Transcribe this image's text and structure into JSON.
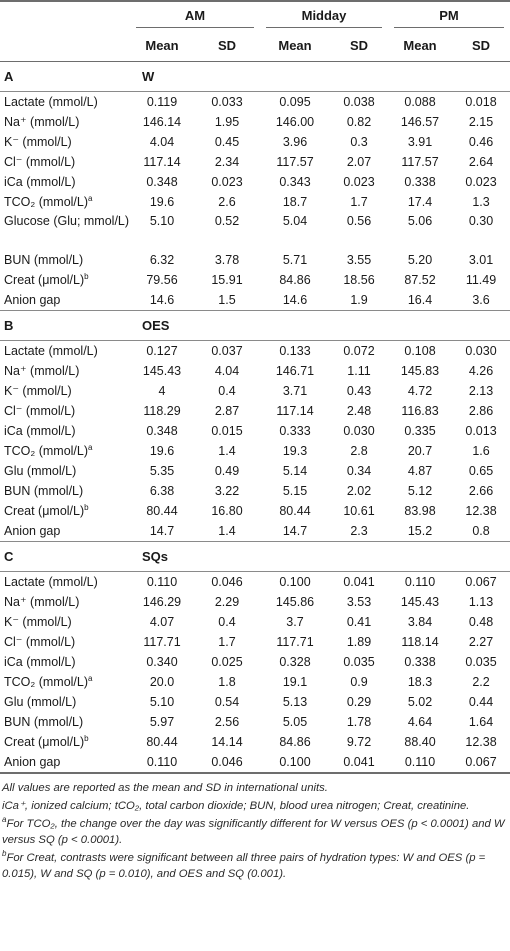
{
  "header": {
    "groups": [
      "AM",
      "Midday",
      "PM"
    ],
    "mean_label": "Mean",
    "sd_label": "SD"
  },
  "sections": [
    {
      "letter": "A",
      "name": "W",
      "rows": [
        {
          "label": "Lactate (mmol/L)",
          "sup": "",
          "am_mean": "0.119",
          "am_sd": "0.033",
          "mid_mean": "0.095",
          "mid_sd": "0.038",
          "pm_mean": "0.088",
          "pm_sd": "0.018"
        },
        {
          "label": "Na⁺ (mmol/L)",
          "sup": "",
          "am_mean": "146.14",
          "am_sd": "1.95",
          "mid_mean": "146.00",
          "mid_sd": "0.82",
          "pm_mean": "146.57",
          "pm_sd": "2.15"
        },
        {
          "label": "K⁻ (mmol/L)",
          "sup": "",
          "am_mean": "4.04",
          "am_sd": "0.45",
          "mid_mean": "3.96",
          "mid_sd": "0.3",
          "pm_mean": "3.91",
          "pm_sd": "0.46"
        },
        {
          "label": "Cl⁻ (mmol/L)",
          "sup": "",
          "am_mean": "117.14",
          "am_sd": "2.34",
          "mid_mean": "117.57",
          "mid_sd": "2.07",
          "pm_mean": "117.57",
          "pm_sd": "2.64"
        },
        {
          "label": "iCa (mmol/L)",
          "sup": "",
          "am_mean": "0.348",
          "am_sd": "0.023",
          "mid_mean": "0.343",
          "mid_sd": "0.023",
          "pm_mean": "0.338",
          "pm_sd": "0.023"
        },
        {
          "label": "TCO₂ (mmol/L)",
          "sup": "a",
          "am_mean": "19.6",
          "am_sd": "2.6",
          "mid_mean": "18.7",
          "mid_sd": "1.7",
          "pm_mean": "17.4",
          "pm_sd": "1.3"
        },
        {
          "label": "Glucose (Glu; mmol/L)",
          "sup": "",
          "tall": true,
          "am_mean": "5.10",
          "am_sd": "0.52",
          "mid_mean": "5.04",
          "mid_sd": "0.56",
          "pm_mean": "5.06",
          "pm_sd": "0.30"
        },
        {
          "label": "BUN (mmol/L)",
          "sup": "",
          "am_mean": "6.32",
          "am_sd": "3.78",
          "mid_mean": "5.71",
          "mid_sd": "3.55",
          "pm_mean": "5.20",
          "pm_sd": "3.01"
        },
        {
          "label": "Creat (μmol/L)",
          "sup": "b",
          "am_mean": "79.56",
          "am_sd": "15.91",
          "mid_mean": "84.86",
          "mid_sd": "18.56",
          "pm_mean": "87.52",
          "pm_sd": "11.49"
        },
        {
          "label": "Anion gap",
          "sup": "",
          "am_mean": "14.6",
          "am_sd": "1.5",
          "mid_mean": "14.6",
          "mid_sd": "1.9",
          "pm_mean": "16.4",
          "pm_sd": "3.6"
        }
      ]
    },
    {
      "letter": "B",
      "name": "OES",
      "rows": [
        {
          "label": "Lactate (mmol/L)",
          "sup": "",
          "am_mean": "0.127",
          "am_sd": "0.037",
          "mid_mean": "0.133",
          "mid_sd": "0.072",
          "pm_mean": "0.108",
          "pm_sd": "0.030"
        },
        {
          "label": "Na⁺ (mmol/L)",
          "sup": "",
          "am_mean": "145.43",
          "am_sd": "4.04",
          "mid_mean": "146.71",
          "mid_sd": "1.11",
          "pm_mean": "145.83",
          "pm_sd": "4.26"
        },
        {
          "label": "K⁻ (mmol/L)",
          "sup": "",
          "am_mean": "4",
          "am_sd": "0.4",
          "mid_mean": "3.71",
          "mid_sd": "0.43",
          "pm_mean": "4.72",
          "pm_sd": "2.13"
        },
        {
          "label": "Cl⁻ (mmol/L)",
          "sup": "",
          "am_mean": "118.29",
          "am_sd": "2.87",
          "mid_mean": "117.14",
          "mid_sd": "2.48",
          "pm_mean": "116.83",
          "pm_sd": "2.86"
        },
        {
          "label": "iCa (mmol/L)",
          "sup": "",
          "am_mean": "0.348",
          "am_sd": "0.015",
          "mid_mean": "0.333",
          "mid_sd": "0.030",
          "pm_mean": "0.335",
          "pm_sd": "0.013"
        },
        {
          "label": "TCO₂ (mmol/L)",
          "sup": "a",
          "am_mean": "19.6",
          "am_sd": "1.4",
          "mid_mean": "19.3",
          "mid_sd": "2.8",
          "pm_mean": "20.7",
          "pm_sd": "1.6"
        },
        {
          "label": "Glu (mmol/L)",
          "sup": "",
          "am_mean": "5.35",
          "am_sd": "0.49",
          "mid_mean": "5.14",
          "mid_sd": "0.34",
          "pm_mean": "4.87",
          "pm_sd": "0.65"
        },
        {
          "label": "BUN (mmol/L)",
          "sup": "",
          "am_mean": "6.38",
          "am_sd": "3.22",
          "mid_mean": "5.15",
          "mid_sd": "2.02",
          "pm_mean": "5.12",
          "pm_sd": "2.66"
        },
        {
          "label": "Creat (μmol/L)",
          "sup": "b",
          "am_mean": "80.44",
          "am_sd": "16.80",
          "mid_mean": "80.44",
          "mid_sd": "10.61",
          "pm_mean": "83.98",
          "pm_sd": "12.38"
        },
        {
          "label": "Anion gap",
          "sup": "",
          "am_mean": "14.7",
          "am_sd": "1.4",
          "mid_mean": "14.7",
          "mid_sd": "2.3",
          "pm_mean": "15.2",
          "pm_sd": "0.8"
        }
      ]
    },
    {
      "letter": "C",
      "name": "SQs",
      "rows": [
        {
          "label": "Lactate (mmol/L)",
          "sup": "",
          "am_mean": "0.110",
          "am_sd": "0.046",
          "mid_mean": "0.100",
          "mid_sd": "0.041",
          "pm_mean": "0.110",
          "pm_sd": "0.067"
        },
        {
          "label": "Na⁺ (mmol/L)",
          "sup": "",
          "am_mean": "146.29",
          "am_sd": "2.29",
          "mid_mean": "145.86",
          "mid_sd": "3.53",
          "pm_mean": "145.43",
          "pm_sd": "1.13"
        },
        {
          "label": "K⁻ (mmol/L)",
          "sup": "",
          "am_mean": "4.07",
          "am_sd": "0.4",
          "mid_mean": "3.7",
          "mid_sd": "0.41",
          "pm_mean": "3.84",
          "pm_sd": "0.48"
        },
        {
          "label": "Cl⁻ (mmol/L)",
          "sup": "",
          "am_mean": "117.71",
          "am_sd": "1.7",
          "mid_mean": "117.71",
          "mid_sd": "1.89",
          "pm_mean": "118.14",
          "pm_sd": "2.27"
        },
        {
          "label": "iCa (mmol/L)",
          "sup": "",
          "am_mean": "0.340",
          "am_sd": "0.025",
          "mid_mean": "0.328",
          "mid_sd": "0.035",
          "pm_mean": "0.338",
          "pm_sd": "0.035"
        },
        {
          "label": "TCO₂ (mmol/L)",
          "sup": "a",
          "am_mean": "20.0",
          "am_sd": "1.8",
          "mid_mean": "19.1",
          "mid_sd": "0.9",
          "pm_mean": "18.3",
          "pm_sd": "2.2"
        },
        {
          "label": "Glu (mmol/L)",
          "sup": "",
          "am_mean": "5.10",
          "am_sd": "0.54",
          "mid_mean": "5.13",
          "mid_sd": "0.29",
          "pm_mean": "5.02",
          "pm_sd": "0.44"
        },
        {
          "label": "BUN (mmol/L)",
          "sup": "",
          "am_mean": "5.97",
          "am_sd": "2.56",
          "mid_mean": "5.05",
          "mid_sd": "1.78",
          "pm_mean": "4.64",
          "pm_sd": "1.64"
        },
        {
          "label": "Creat (μmol/L)",
          "sup": "b",
          "am_mean": "80.44",
          "am_sd": "14.14",
          "mid_mean": "84.86",
          "mid_sd": "9.72",
          "pm_mean": "88.40",
          "pm_sd": "12.38"
        },
        {
          "label": "Anion gap",
          "sup": "",
          "am_mean": "0.110",
          "am_sd": "0.046",
          "mid_mean": "0.100",
          "mid_sd": "0.041",
          "pm_mean": "0.110",
          "pm_sd": "0.067"
        }
      ]
    }
  ],
  "footnotes": {
    "values_note": "All values are reported as the mean and SD in international units.",
    "abbrev_note": "iCa⁺, ionized calcium; tCO₂, total carbon dioxide; BUN, blood urea nitrogen; Creat, creatinine.",
    "note_a_mark": "a",
    "note_a": "For TCO₂, the change over the day was significantly different for W versus OES (p < 0.0001) and W versus SQ (p < 0.0001).",
    "note_b_mark": "b",
    "note_b": "For Creat, contrasts were significant between all three pairs of hydration types: W and OES (p = 0.015), W and SQ (p = 0.010), and OES and SQ (0.001)."
  }
}
